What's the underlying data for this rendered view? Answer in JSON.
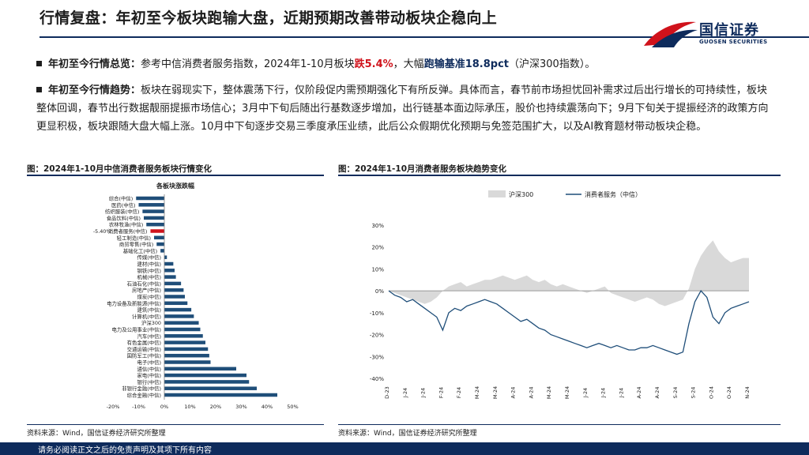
{
  "title": "行情复盘：年初至今板块跑输大盘，近期预期改善带动板块企稳向上",
  "logo": {
    "cn": "国信证券",
    "en": "GUOSEN SECURITIES"
  },
  "bullets": [
    {
      "head": "年初至今行情总览：",
      "segments": [
        {
          "t": "参考中信消费者服务指数，2024年1-10月板块",
          "c": "n"
        },
        {
          "t": "跌5.4%",
          "c": "red"
        },
        {
          "t": "，大幅",
          "c": "n"
        },
        {
          "t": "跑输基准18.8pct",
          "c": "navy"
        },
        {
          "t": "（沪深300指数）。",
          "c": "n"
        }
      ]
    },
    {
      "head": "年初至今行情趋势：",
      "segments": [
        {
          "t": "板块在弱现实下，整体震荡下行，仅阶段促内需预期强化下有所反弹。具体而言，春节前市场担忧回补需求过后出行增长的可持续性，板块整体回调，春节出行数据靓丽提振市场信心；3月中下旬后随出行基数逐步增加，出行链基本面边际承压，股价也持续震荡向下；9月下旬关于提振经济的政策方向更显积极，板块跟随大盘大幅上涨。10月中下旬逐步交易三季度承压业绩，此后公众假期优化预期与免签范围扩大，以及AI教育题材带动板块企稳。",
          "c": "n"
        }
      ]
    }
  ],
  "figures": {
    "left_title": "图：2024年1-10月中信消费者服务板块行情变化",
    "right_title": "图：2024年1-10月消费者服务板块趋势变化",
    "left_source": "资料来源：Wind，国信证券经济研究所整理",
    "right_source": "资料来源：Wind，国信证券经济研究所整理"
  },
  "footer": "请务必阅读正文之后的免责声明及其项下所有内容",
  "chart_data": [
    {
      "type": "bar",
      "orientation": "horizontal",
      "title": "各板块涨跌幅",
      "categories": [
        "综合(中信)",
        "医药(中信)",
        "纺织服装(中信)",
        "食品饮料(中信)",
        "农林牧渔(中信)",
        "消费者服务(中信)",
        "轻工制造(中信)",
        "商贸零售(中信)",
        "基础化工(中信)",
        "传媒(中信)",
        "建材(中信)",
        "钢铁(中信)",
        "机械(中信)",
        "石油石化(中信)",
        "房地产(中信)",
        "煤炭(中信)",
        "电力设备及新能源(中信)",
        "建筑(中信)",
        "计算机(中信)",
        "沪深300",
        "电力及公用事业(中信)",
        "汽车(中信)",
        "有色金属(中信)",
        "交通运输(中信)",
        "国防军工(中信)",
        "电子(中信)",
        "通信(中信)",
        "家电(中信)",
        "银行(中信)",
        "非银行金融(中信)",
        "综合金融(中信)"
      ],
      "values": [
        -11,
        -10,
        -8.5,
        -8,
        -7,
        -5.4,
        -4,
        -3,
        -1.5,
        1,
        3.5,
        4,
        4.5,
        6.5,
        7.5,
        8,
        9,
        10.5,
        11.5,
        13.4,
        14,
        15,
        16,
        17,
        17.5,
        18,
        28,
        32,
        33,
        36,
        44
      ],
      "highlight": {
        "category": "消费者服务(中信)",
        "label": "-5.40%",
        "color": "#d0121b"
      },
      "bar_color": "#1f4e79",
      "xlim": [
        -20,
        50
      ],
      "xticks": [
        "-20%",
        "-10%",
        "0%",
        "10%",
        "20%",
        "30%",
        "40%",
        "50%"
      ]
    },
    {
      "type": "area+line",
      "legend": [
        "沪深300",
        "消费者服务（中信）"
      ],
      "legend_position": "top",
      "colors": {
        "area": "#d9d9d9",
        "line": "#1f4e79"
      },
      "ylim": [
        -40,
        30
      ],
      "yticks": [
        "30%",
        "20%",
        "10%",
        "0%",
        "-10%",
        "-20%",
        "-30%",
        "-40%"
      ],
      "xticks": [
        "D-23",
        "J-24",
        "J-24",
        "F-24",
        "F-24",
        "M-24",
        "M-24",
        "A-24",
        "A-24",
        "M-24",
        "M-24",
        "J-24",
        "J-24",
        "J-24",
        "A-24",
        "A-24",
        "S-24",
        "S-24",
        "O-24",
        "O-24",
        "N-24"
      ],
      "series": [
        {
          "name": "沪深300",
          "values": [
            0,
            -1,
            -2,
            -3,
            -4,
            -5,
            -6,
            -5,
            -3,
            0,
            2,
            3,
            4,
            2,
            3,
            4,
            5,
            5,
            6,
            7,
            6,
            5,
            6,
            7,
            5,
            4,
            5,
            3,
            2,
            3,
            2,
            1,
            0,
            -1,
            0,
            1,
            2,
            -1,
            -2,
            -3,
            -4,
            -5,
            -4,
            -3,
            -4,
            -6,
            -7,
            -6,
            -5,
            -4,
            1,
            10,
            16,
            20,
            23,
            18,
            15,
            13,
            14,
            15,
            15
          ]
        },
        {
          "name": "消费者服务（中信）",
          "values": [
            0,
            -2,
            -3,
            -5,
            -4,
            -6,
            -8,
            -10,
            -12,
            -18,
            -10,
            -8,
            -9,
            -7,
            -6,
            -5,
            -4,
            -5,
            -6,
            -8,
            -10,
            -12,
            -14,
            -13,
            -15,
            -17,
            -18,
            -20,
            -21,
            -22,
            -23,
            -24,
            -25,
            -26,
            -25,
            -24,
            -25,
            -26,
            -25,
            -26,
            -27,
            -27,
            -26,
            -26,
            -25,
            -26,
            -27,
            -28,
            -29,
            -28,
            -15,
            -5,
            0,
            -3,
            -12,
            -15,
            -10,
            -8,
            -7,
            -6,
            -5
          ]
        }
      ]
    }
  ]
}
